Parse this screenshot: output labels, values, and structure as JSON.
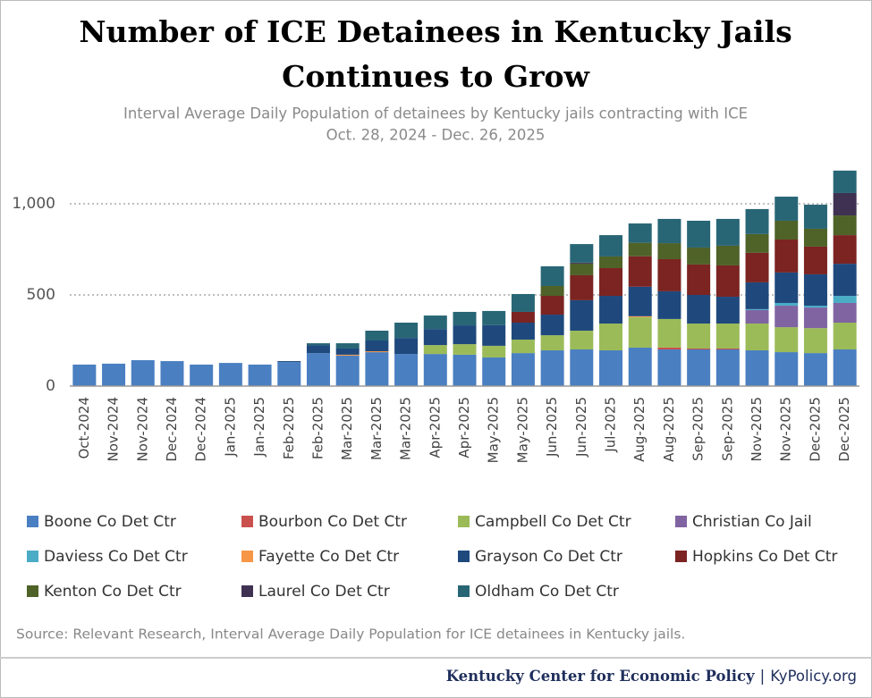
{
  "chart_data": {
    "type": "stacked_bar",
    "title": [
      "Number of ICE Detainees in Kentucky Jails",
      "Continues to Grow"
    ],
    "subtitle": [
      "Interval Average Daily Population of detainees by Kentucky jails contracting with ICE",
      "Oct. 28, 2024 - Dec. 26, 2025"
    ],
    "categories": [
      "Oct-2024",
      "Nov-2024",
      "Nov-2024",
      "Dec-2024",
      "Dec-2024",
      "Jan-2025",
      "Jan-2025",
      "Feb-2025",
      "Feb-2025",
      "Mar-2025",
      "Mar-2025",
      "Mar-2025",
      "Apr-2025",
      "Apr-2025",
      "May-2025",
      "May-2025",
      "Jun-2025",
      "Jun-2025",
      "Jul-2025",
      "Aug-2025",
      "Aug-2025",
      "Sep-2025",
      "Sep-2025",
      "Nov-2025",
      "Nov-2025",
      "Dec-2025",
      "Dec-2025"
    ],
    "series": [
      {
        "name": "Boone Co Det Ctr",
        "color": "#4a7fc1",
        "values": [
          118,
          123,
          142,
          137,
          118,
          127,
          118,
          132,
          181,
          167,
          186,
          176,
          176,
          172,
          157,
          181,
          196,
          201,
          196,
          211,
          201,
          201,
          201,
          196,
          186,
          181,
          201
        ]
      },
      {
        "name": "Bourbon Co Det Ctr",
        "color": "#c9504c",
        "values": [
          0,
          0,
          0,
          0,
          0,
          0,
          0,
          0,
          0,
          0,
          0,
          0,
          0,
          0,
          0,
          0,
          0,
          0,
          0,
          0,
          10,
          5,
          5,
          0,
          0,
          0,
          0
        ]
      },
      {
        "name": "Campbell Co Det Ctr",
        "color": "#9bbb59",
        "values": [
          0,
          0,
          0,
          0,
          0,
          0,
          0,
          0,
          0,
          0,
          0,
          0,
          49,
          58,
          64,
          74,
          83,
          103,
          147,
          167,
          157,
          137,
          137,
          147,
          137,
          137,
          147
        ]
      },
      {
        "name": "Christian Co Jail",
        "color": "#8064a2",
        "values": [
          0,
          0,
          0,
          0,
          0,
          0,
          0,
          0,
          0,
          0,
          0,
          0,
          0,
          0,
          0,
          0,
          0,
          0,
          0,
          0,
          0,
          0,
          0,
          74,
          118,
          113,
          108
        ]
      },
      {
        "name": "Daviess Co Det Ctr",
        "color": "#4bacc6",
        "values": [
          0,
          0,
          0,
          0,
          0,
          0,
          0,
          0,
          0,
          0,
          0,
          0,
          0,
          0,
          0,
          0,
          0,
          0,
          0,
          0,
          0,
          0,
          0,
          5,
          15,
          10,
          39
        ]
      },
      {
        "name": "Fayette Co Det Ctr",
        "color": "#f79646",
        "values": [
          0,
          0,
          0,
          0,
          0,
          0,
          0,
          0,
          0,
          5,
          5,
          0,
          0,
          0,
          0,
          0,
          0,
          0,
          0,
          5,
          0,
          0,
          0,
          0,
          0,
          0,
          0
        ]
      },
      {
        "name": "Grayson Co Det Ctr",
        "color": "#1f497d",
        "values": [
          0,
          0,
          0,
          0,
          0,
          0,
          0,
          5,
          44,
          34,
          59,
          88,
          88,
          103,
          113,
          93,
          113,
          167,
          152,
          162,
          152,
          157,
          147,
          147,
          167,
          172,
          176
        ]
      },
      {
        "name": "Hopkins Co Det Ctr",
        "color": "#7b2422",
        "values": [
          0,
          0,
          0,
          0,
          0,
          0,
          0,
          0,
          0,
          0,
          0,
          0,
          0,
          0,
          0,
          59,
          103,
          137,
          152,
          167,
          176,
          167,
          172,
          162,
          181,
          152,
          157
        ]
      },
      {
        "name": "Kenton Co Det Ctr",
        "color": "#4f6228",
        "values": [
          0,
          0,
          0,
          0,
          0,
          0,
          0,
          0,
          0,
          0,
          0,
          0,
          0,
          0,
          0,
          0,
          54,
          64,
          64,
          74,
          88,
          93,
          108,
          103,
          103,
          98,
          108
        ]
      },
      {
        "name": "Laurel Co Det Ctr",
        "color": "#3f3151",
        "values": [
          0,
          0,
          0,
          0,
          0,
          0,
          0,
          0,
          0,
          0,
          0,
          0,
          0,
          0,
          0,
          0,
          0,
          5,
          0,
          0,
          0,
          0,
          0,
          0,
          0,
          0,
          123
        ]
      },
      {
        "name": "Oldham Co Det Ctr",
        "color": "#286676",
        "values": [
          0,
          0,
          0,
          0,
          0,
          0,
          0,
          0,
          10,
          29,
          54,
          84,
          74,
          74,
          78,
          98,
          108,
          102,
          117,
          106,
          133,
          147,
          147,
          137,
          132,
          132,
          123
        ]
      }
    ],
    "ylim": [
      0,
      1200
    ],
    "yticks": [
      0,
      500,
      {
        "value": 1000,
        "label": "1,000"
      }
    ],
    "grid": true,
    "source": "Source: Relevant Research, Interval Average Daily Population for ICE detainees in Kentucky jails."
  },
  "footer": {
    "org": "Kentucky Center for Economic Policy",
    "separator": "|",
    "site": "KyPolicy.org"
  }
}
